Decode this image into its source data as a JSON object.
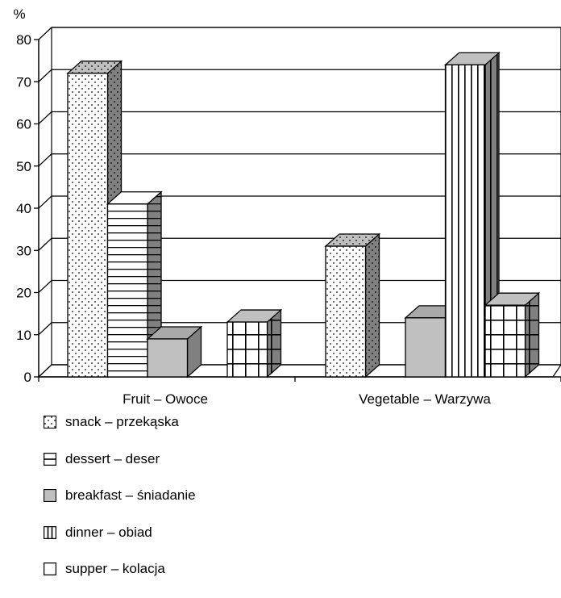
{
  "chart_data": {
    "type": "bar",
    "ylabel": "%",
    "ylim": [
      0,
      80
    ],
    "yticks": [
      0,
      10,
      20,
      30,
      40,
      50,
      60,
      70,
      80
    ],
    "categories": [
      "Fruit – Owoce",
      "Vegetable – Warzywa"
    ],
    "grid": true,
    "legend_position": "bottom",
    "series": [
      {
        "name": "snack – przekąska",
        "pattern": "dots",
        "values": [
          72,
          31
        ]
      },
      {
        "name": "dessert – deser",
        "pattern": "horizontal",
        "values": [
          41,
          0
        ]
      },
      {
        "name": "breakfast – śniadanie",
        "pattern": "solid-gray",
        "values": [
          9,
          14
        ]
      },
      {
        "name": "dinner – obiad",
        "pattern": "vertical",
        "values": [
          0,
          74
        ]
      },
      {
        "name": "supper – kolacja",
        "pattern": "grid",
        "values": [
          13,
          17
        ]
      }
    ]
  },
  "colors": {
    "gray_fill": "#c0c0c0",
    "side_dark": "#808080",
    "outline": "#000000",
    "background": "#ffffff"
  }
}
